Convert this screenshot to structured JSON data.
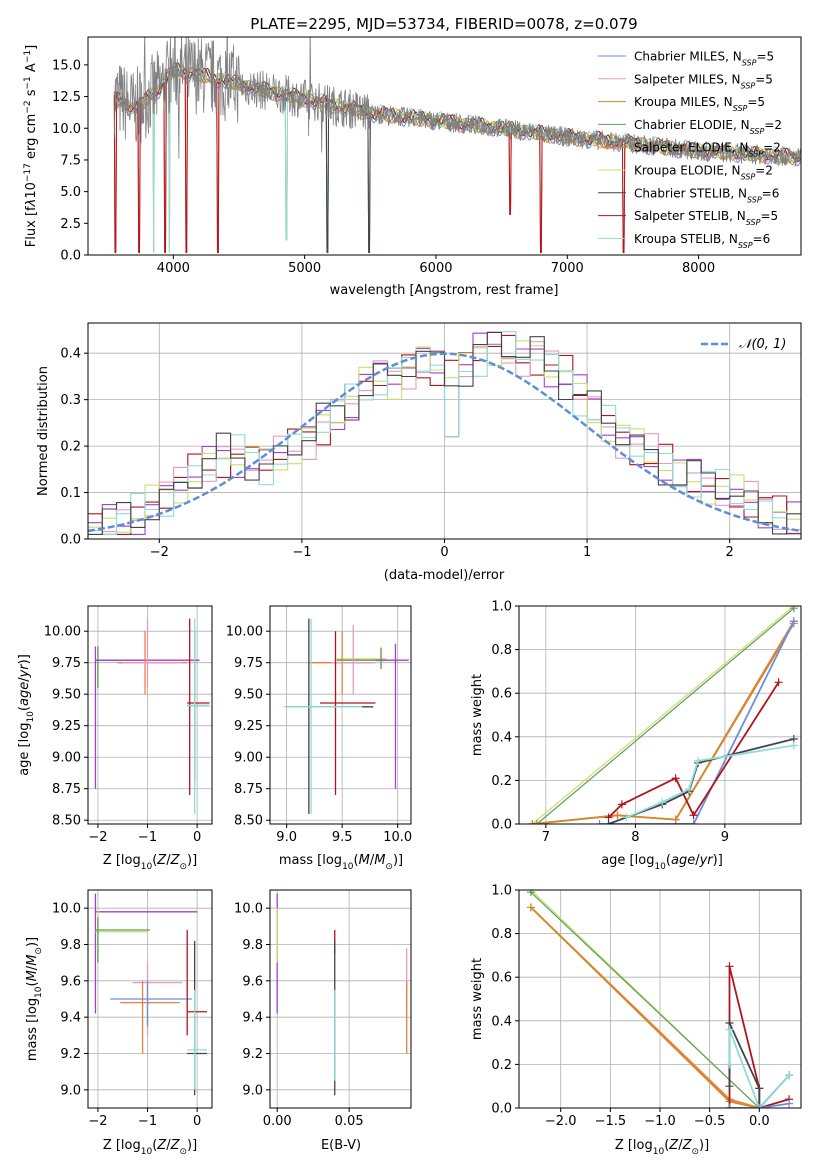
{
  "figure": {
    "title": "PLATE=2295, MJD=53734, FIBERID=0078, z=0.079"
  },
  "colors": {
    "Chabrier MILES": "#6c8ee0",
    "Salpeter MILES": "#e79ac6",
    "Kroupa MILES": "#d08a2e",
    "Chabrier ELODIE": "#5a9f58",
    "Salpeter ELODIE": "#ee7f3f",
    "Kroupa ELODIE": "#c8e06a",
    "Chabrier STELIB": "#444444",
    "Salpeter STELIB": "#b0151e",
    "Kroupa STELIB": "#8fdcdc",
    "purple": "#a63fd0",
    "blue_dash": "#5b8fd8",
    "grey_spec": "#808080"
  },
  "chart_data": [
    {
      "id": "spectrum",
      "type": "line",
      "xlabel": "wavelength [Angstrom, rest frame]",
      "ylabel": "Flux [f_λ10^-17 erg cm^-2 s^-1 A^-1]",
      "xlim": [
        3350,
        8780
      ],
      "ylim": [
        0,
        17.2
      ],
      "xticks": [
        4000,
        5000,
        6000,
        7000,
        8000
      ],
      "yticks": [
        0.0,
        2.5,
        5.0,
        7.5,
        10.0,
        12.5,
        15.0
      ],
      "grid": false,
      "legend_position": "top-right",
      "legend": [
        {
          "name": "Chabrier MILES",
          "ssp": "5"
        },
        {
          "name": "Salpeter MILES",
          "ssp": "5"
        },
        {
          "name": "Kroupa MILES",
          "ssp": "5"
        },
        {
          "name": "Chabrier ELODIE",
          "ssp": "2"
        },
        {
          "name": "Salpeter ELODIE",
          "ssp": "2"
        },
        {
          "name": "Kroupa ELODIE",
          "ssp": "2"
        },
        {
          "name": "Chabrier STELIB",
          "ssp": "6"
        },
        {
          "name": "Salpeter STELIB",
          "ssp": "5"
        },
        {
          "name": "Kroupa STELIB",
          "ssp": "6"
        }
      ],
      "continuum": {
        "x": [
          3550,
          3700,
          3900,
          4000,
          4100,
          4300,
          4600,
          5000,
          5500,
          6000,
          6500,
          7000,
          7400,
          8000,
          8500,
          8780
        ],
        "y": [
          12.5,
          11.5,
          13.2,
          14.6,
          14.4,
          14.0,
          13.2,
          12.3,
          11.2,
          10.6,
          10.0,
          9.3,
          8.9,
          8.2,
          7.9,
          7.7
        ]
      }
    },
    {
      "id": "residuals",
      "type": "line",
      "xlabel": "(data-model)/error",
      "ylabel": "Normed distribution",
      "xlim": [
        -2.5,
        2.5
      ],
      "ylim": [
        0,
        0.465
      ],
      "xticks": [
        -2,
        -1,
        0,
        1,
        2
      ],
      "yticks": [
        0.0,
        0.1,
        0.2,
        0.3,
        0.4
      ],
      "grid": true,
      "legend_position": "top-right",
      "gaussian_label": "𝒩(0, 1)",
      "bin_width": 0.1,
      "hist_base": [
        0.02,
        0.03,
        0.04,
        0.05,
        0.07,
        0.09,
        0.12,
        0.14,
        0.16,
        0.18,
        0.18,
        0.17,
        0.16,
        0.18,
        0.2,
        0.22,
        0.25,
        0.27,
        0.3,
        0.33,
        0.35,
        0.35,
        0.37,
        0.38,
        0.37,
        0.36,
        0.37,
        0.4,
        0.42,
        0.41,
        0.39,
        0.4,
        0.37,
        0.35,
        0.31,
        0.28,
        0.25,
        0.22,
        0.2,
        0.18,
        0.16,
        0.14,
        0.13,
        0.12,
        0.11,
        0.09,
        0.08,
        0.06,
        0.05,
        0.03
      ]
    },
    {
      "id": "age-Z",
      "type": "scatter",
      "xlabel": "Z [log10(Z/Z⊙)]",
      "ylabel": "age [log10(age/yr)]",
      "xlim": [
        -2.2,
        0.3
      ],
      "ylim": [
        8.47,
        10.2
      ],
      "xticks": [
        -2,
        -1,
        0
      ],
      "yticks": [
        8.5,
        8.75,
        9.0,
        9.25,
        9.5,
        9.75,
        10.0
      ],
      "grid": true,
      "points": [
        {
          "model": "Kroupa ELODIE",
          "x": -2.0,
          "y": 9.77,
          "xl": -2.05,
          "xh": 0.0,
          "yl": 9.55,
          "yh": 9.88
        },
        {
          "model": "Chabrier ELODIE",
          "x": -2.0,
          "y": 9.77,
          "xl": -2.05,
          "xh": -0.95,
          "yl": 9.55,
          "yh": 9.88
        },
        {
          "model": "purple",
          "x": -2.05,
          "y": 9.77,
          "xl": -2.05,
          "xh": 0.05,
          "yl": 8.75,
          "yh": 9.88
        },
        {
          "model": "Salpeter ELODIE",
          "x": -1.05,
          "y": 9.75,
          "xl": -1.6,
          "xh": -0.2,
          "yl": 9.5,
          "yh": 10.0
        },
        {
          "model": "Salpeter MILES",
          "x": -1.0,
          "y": 9.75,
          "xl": -1.5,
          "xh": -0.3,
          "yl": 9.55,
          "yh": 10.1
        },
        {
          "model": "Salpeter STELIB",
          "x": -0.15,
          "y": 9.43,
          "xl": -0.2,
          "xh": 0.25,
          "yl": 8.7,
          "yh": 10.1
        },
        {
          "model": "Chabrier STELIB",
          "x": -0.05,
          "y": 9.41,
          "xl": -0.2,
          "xh": 0.25,
          "yl": 8.8,
          "yh": 10.0
        },
        {
          "model": "Kroupa STELIB",
          "x": -0.05,
          "y": 9.41,
          "xl": -0.2,
          "xh": 0.25,
          "yl": 8.55,
          "yh": 10.1
        }
      ]
    },
    {
      "id": "age-mass",
      "type": "scatter",
      "xlabel": "mass [log10(M/M⊙)]",
      "ylabel": "",
      "xlim": [
        8.85,
        10.12
      ],
      "ylim": [
        8.47,
        10.2
      ],
      "xticks": [
        9.0,
        9.5,
        10.0
      ],
      "yticks": [
        8.5,
        8.75,
        9.0,
        9.25,
        9.5,
        9.75,
        10.0
      ],
      "grid": true,
      "points": [
        {
          "model": "Kroupa ELODIE",
          "x": 9.85,
          "y": 9.78,
          "xl": 9.45,
          "xh": 9.9,
          "yl": 9.7,
          "yh": 9.87
        },
        {
          "model": "Chabrier ELODIE",
          "x": 9.85,
          "y": 9.77,
          "xl": 9.45,
          "xh": 9.9,
          "yl": 9.7,
          "yh": 9.87
        },
        {
          "model": "purple",
          "x": 9.98,
          "y": 9.77,
          "xl": 9.8,
          "xh": 10.1,
          "yl": 8.75,
          "yh": 9.9
        },
        {
          "model": "Salpeter ELODIE",
          "x": 9.5,
          "y": 9.75,
          "xl": 9.2,
          "xh": 9.75,
          "yl": 9.5,
          "yh": 10.0
        },
        {
          "model": "Salpeter MILES",
          "x": 9.6,
          "y": 9.75,
          "xl": 9.4,
          "xh": 9.8,
          "yl": 9.5,
          "yh": 10.05
        },
        {
          "model": "Salpeter STELIB",
          "x": 9.44,
          "y": 9.43,
          "xl": 9.3,
          "xh": 9.8,
          "yl": 8.7,
          "yh": 10.0
        },
        {
          "model": "Chabrier STELIB",
          "x": 9.2,
          "y": 9.4,
          "xl": 8.98,
          "xh": 9.78,
          "yl": 8.55,
          "yh": 10.1
        },
        {
          "model": "Kroupa STELIB",
          "x": 9.22,
          "y": 9.4,
          "xl": 8.98,
          "xh": 9.68,
          "yl": 8.55,
          "yh": 10.1
        }
      ]
    },
    {
      "id": "weight-age",
      "type": "line",
      "xlabel": "age [log10(age/yr)]",
      "ylabel": "mass weight",
      "xlim": [
        6.7,
        9.85
      ],
      "ylim": [
        0,
        1.0
      ],
      "xticks": [
        7,
        8,
        9
      ],
      "yticks": [
        0.0,
        0.2,
        0.4,
        0.6,
        0.8,
        1.0
      ],
      "grid": true,
      "series": [
        {
          "model": "Kroupa ELODIE",
          "x": [
            6.85,
            9.77
          ],
          "y": [
            0.0,
            1.0
          ]
        },
        {
          "model": "Chabrier ELODIE",
          "x": [
            6.9,
            9.77
          ],
          "y": [
            0.0,
            0.99
          ]
        },
        {
          "model": "Salpeter ELODIE",
          "x": [
            6.85,
            7.8,
            8.45,
            9.77
          ],
          "y": [
            0.0,
            0.04,
            0.02,
            0.93
          ]
        },
        {
          "model": "Kroupa MILES",
          "x": [
            6.85,
            7.8,
            8.45,
            9.77
          ],
          "y": [
            0.0,
            0.04,
            0.02,
            0.92
          ]
        },
        {
          "model": "Chabrier MILES",
          "x": [
            7.6,
            8.65,
            9.77
          ],
          "y": [
            0.0,
            0.0,
            0.93
          ]
        },
        {
          "model": "Salpeter STELIB",
          "x": [
            7.7,
            7.85,
            8.45,
            8.65,
            9.6
          ],
          "y": [
            0.03,
            0.09,
            0.21,
            0.04,
            0.65
          ]
        },
        {
          "model": "Chabrier STELIB",
          "x": [
            7.7,
            8.3,
            8.6,
            8.7,
            9.77
          ],
          "y": [
            0.0,
            0.09,
            0.15,
            0.28,
            0.39
          ]
        },
        {
          "model": "Kroupa STELIB",
          "x": [
            7.9,
            8.3,
            8.6,
            8.7,
            9.77
          ],
          "y": [
            0.03,
            0.1,
            0.16,
            0.29,
            0.36
          ]
        }
      ]
    },
    {
      "id": "mass-Z",
      "type": "scatter",
      "xlabel": "Z [log10(Z/Z⊙)]",
      "ylabel": "mass [log10(M/M⊙)]",
      "xlim": [
        -2.2,
        0.3
      ],
      "ylim": [
        8.9,
        10.1
      ],
      "xticks": [
        -2,
        -1,
        0
      ],
      "yticks": [
        9.0,
        9.2,
        9.4,
        9.6,
        9.8,
        10.0
      ],
      "grid": true,
      "points": [
        {
          "model": "purple",
          "x": -2.05,
          "y": 9.98,
          "xl": -2.05,
          "xh": 0.0,
          "yl": 9.42,
          "yh": 10.08
        },
        {
          "model": "Kroupa ELODIE",
          "x": -2.0,
          "y": 9.87,
          "xl": -2.05,
          "xh": -1.0,
          "yl": 9.7,
          "yh": 10.0
        },
        {
          "model": "Chabrier ELODIE",
          "x": -2.0,
          "y": 9.88,
          "xl": -2.05,
          "xh": -0.95,
          "yl": 9.7,
          "yh": 9.95
        },
        {
          "model": "Salpeter MILES",
          "x": -1.0,
          "y": 9.59,
          "xl": -1.3,
          "xh": -0.3,
          "yl": 9.3,
          "yh": 9.7
        },
        {
          "model": "Salpeter ELODIE",
          "x": -1.1,
          "y": 9.48,
          "xl": -1.55,
          "xh": -0.35,
          "yl": 9.2,
          "yh": 9.6
        },
        {
          "model": "Chabrier MILES",
          "x": -1.0,
          "y": 9.5,
          "xl": -1.75,
          "xh": -0.1,
          "yl": 9.35,
          "yh": 9.6
        },
        {
          "model": "Salpeter STELIB",
          "x": -0.2,
          "y": 9.43,
          "xl": -0.2,
          "xh": 0.2,
          "yl": 9.3,
          "yh": 9.88
        },
        {
          "model": "Chabrier STELIB",
          "x": -0.05,
          "y": 9.2,
          "xl": -0.2,
          "xh": 0.2,
          "yl": 8.97,
          "yh": 9.82
        },
        {
          "model": "Kroupa STELIB",
          "x": -0.05,
          "y": 9.22,
          "xl": -0.2,
          "xh": 0.2,
          "yl": 9.0,
          "yh": 9.55
        }
      ]
    },
    {
      "id": "mass-ebv",
      "type": "scatter",
      "xlabel": "E(B-V)",
      "ylabel": "",
      "xlim": [
        -0.005,
        0.093
      ],
      "ylim": [
        8.9,
        10.1
      ],
      "xticks": [
        0.0,
        0.05
      ],
      "yticks": [
        9.0,
        9.2,
        9.4,
        9.6,
        9.8,
        10.0
      ],
      "grid": true,
      "points": [
        {
          "model": "purple",
          "x": 0.0,
          "y": 9.98,
          "yl": 9.42,
          "yh": 10.08
        },
        {
          "model": "Kroupa ELODIE",
          "x": 0.0,
          "y": 9.87,
          "yl": 9.7,
          "yh": 10.0
        },
        {
          "model": "Salpeter STELIB",
          "x": 0.04,
          "y": 9.85,
          "yl": 9.75,
          "yh": 9.88
        },
        {
          "model": "Chabrier STELIB",
          "x": 0.04,
          "y": 9.2,
          "yl": 8.97,
          "yh": 9.82
        },
        {
          "model": "Kroupa STELIB",
          "x": 0.04,
          "y": 9.22,
          "yl": 9.05,
          "yh": 9.55
        },
        {
          "model": "Salpeter MILES",
          "x": 0.09,
          "y": 9.6,
          "yl": 9.4,
          "yh": 9.78
        },
        {
          "model": "Salpeter ELODIE",
          "x": 0.09,
          "y": 9.4,
          "yl": 9.2,
          "yh": 9.6
        }
      ]
    },
    {
      "id": "weight-Z",
      "type": "line",
      "xlabel": "Z [log10(Z/Z⊙)]",
      "ylabel": "mass weight",
      "xlim": [
        -2.42,
        0.42
      ],
      "ylim": [
        0,
        1.0
      ],
      "xticks": [
        -2.0,
        -1.5,
        -1.0,
        -0.5,
        0.0
      ],
      "yticks": [
        0.0,
        0.2,
        0.4,
        0.6,
        0.8,
        1.0
      ],
      "grid": true,
      "series": [
        {
          "model": "Kroupa ELODIE",
          "x": [
            -2.3,
            0.0
          ],
          "y": [
            1.0,
            0.0
          ]
        },
        {
          "model": "Chabrier ELODIE",
          "x": [
            -2.3,
            0.0
          ],
          "y": [
            0.99,
            0.0
          ]
        },
        {
          "model": "Salpeter ELODIE",
          "x": [
            -2.3,
            -0.3,
            0.0
          ],
          "y": [
            0.92,
            0.04,
            0.0
          ]
        },
        {
          "model": "Kroupa MILES",
          "x": [
            -2.3,
            -0.3,
            0.0
          ],
          "y": [
            0.92,
            0.03,
            0.0
          ]
        },
        {
          "model": "Salpeter STELIB",
          "x": [
            -0.3,
            -0.3,
            0.0,
            0.0,
            0.3
          ],
          "y": [
            0.0,
            0.65,
            0.09,
            0.0,
            0.04
          ]
        },
        {
          "model": "Chabrier STELIB",
          "x": [
            -0.3,
            -0.3,
            0.0,
            0.0,
            0.3
          ],
          "y": [
            0.1,
            0.39,
            0.09,
            0.0,
            0.15
          ]
        },
        {
          "model": "Kroupa STELIB",
          "x": [
            -0.3,
            -0.3,
            0.0,
            0.3
          ],
          "y": [
            0.2,
            0.36,
            0.0,
            0.15
          ]
        },
        {
          "model": "Chabrier MILES",
          "x": [
            -0.3,
            0.0,
            0.3
          ],
          "y": [
            0.0,
            0.0,
            0.02
          ]
        }
      ]
    }
  ]
}
